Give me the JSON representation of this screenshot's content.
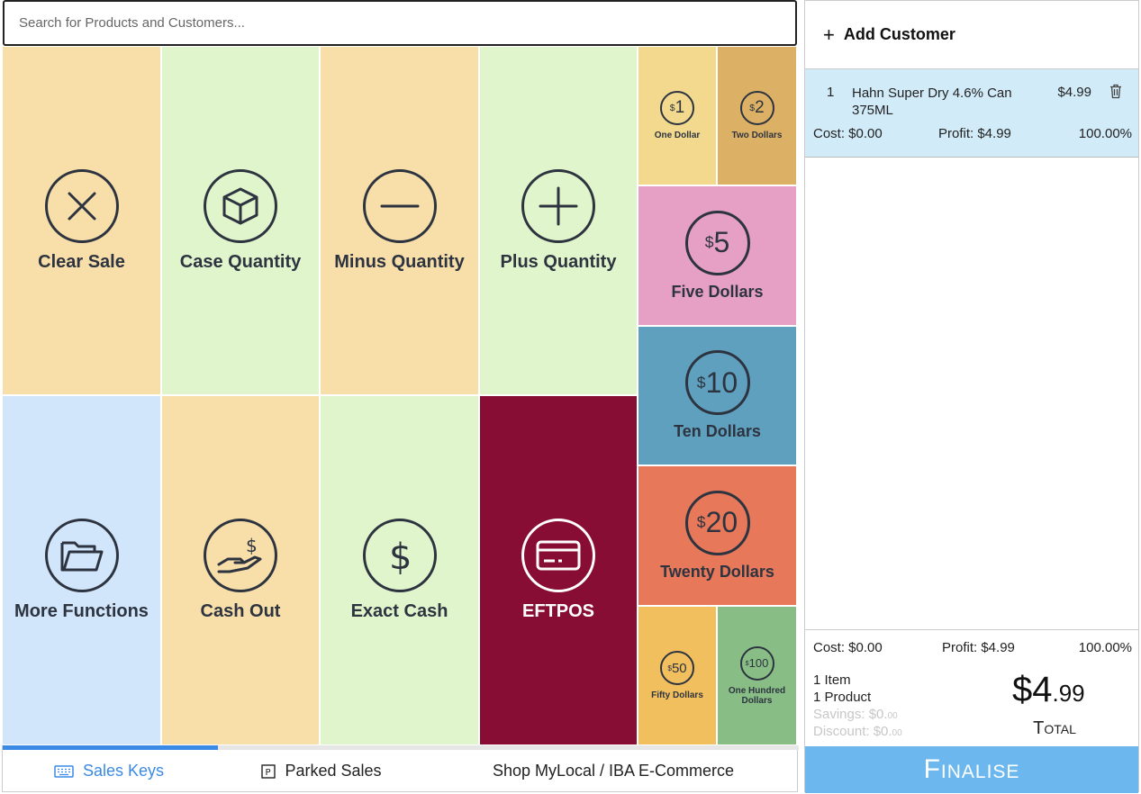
{
  "search": {
    "placeholder": "Search for Products and Customers..."
  },
  "keys": {
    "clear_sale": "Clear Sale",
    "case_quantity": "Case Quantity",
    "minus_quantity": "Minus Quantity",
    "plus_quantity": "Plus Quantity",
    "more_functions": "More Functions",
    "cash_out": "Cash Out",
    "exact_cash": "Exact Cash",
    "eftpos": "EFTPOS"
  },
  "cash_keys": [
    {
      "symbol": "$",
      "amount": "1",
      "label": "One Dollar",
      "color": "#f2d98e"
    },
    {
      "symbol": "$",
      "amount": "2",
      "label": "Two Dollars",
      "color": "#dcb166"
    },
    {
      "symbol": "$",
      "amount": "5",
      "label": "Five Dollars",
      "color": "#e7a0c5"
    },
    {
      "symbol": "$",
      "amount": "10",
      "label": "Ten Dollars",
      "color": "#5fa0bf"
    },
    {
      "symbol": "$",
      "amount": "20",
      "label": "Twenty Dollars",
      "color": "#e7785a"
    },
    {
      "symbol": "$",
      "amount": "50",
      "label": "Fifty Dollars",
      "color": "#f2bf5e"
    },
    {
      "symbol": "$",
      "amount": "100",
      "label": "One Hundred Dollars",
      "color": "#88be85"
    }
  ],
  "tabs": {
    "sales_keys": "Sales Keys",
    "parked_sales": "Parked Sales",
    "shop": "Shop MyLocal / IBA E-Commerce",
    "progress": 0.27
  },
  "cart": {
    "add_customer": "Add Customer",
    "items": [
      {
        "qty": "1",
        "name": "Hahn Super Dry 4.6% Can 375ML",
        "price": "$4.99",
        "cost": "Cost: $0.00",
        "profit": "Profit: $4.99",
        "margin": "100.00%"
      }
    ]
  },
  "summary": {
    "cost": "Cost: $0.00",
    "profit": "Profit: $4.99",
    "margin": "100.00%",
    "items": "1 Item",
    "products": "1 Product",
    "savings_label": "Savings: $0.",
    "savings_cents": "00",
    "discount_label": "Discount: $0.",
    "discount_cents": "00",
    "total_dollars": "$4",
    "total_cents": ".99",
    "total_label": "Total"
  },
  "finalise": "Finalise",
  "colors": {
    "accent": "#3a8ae6",
    "finalise": "#6cb8ee",
    "eftpos": "#870d35",
    "cart_item": "#d1ebf8"
  }
}
